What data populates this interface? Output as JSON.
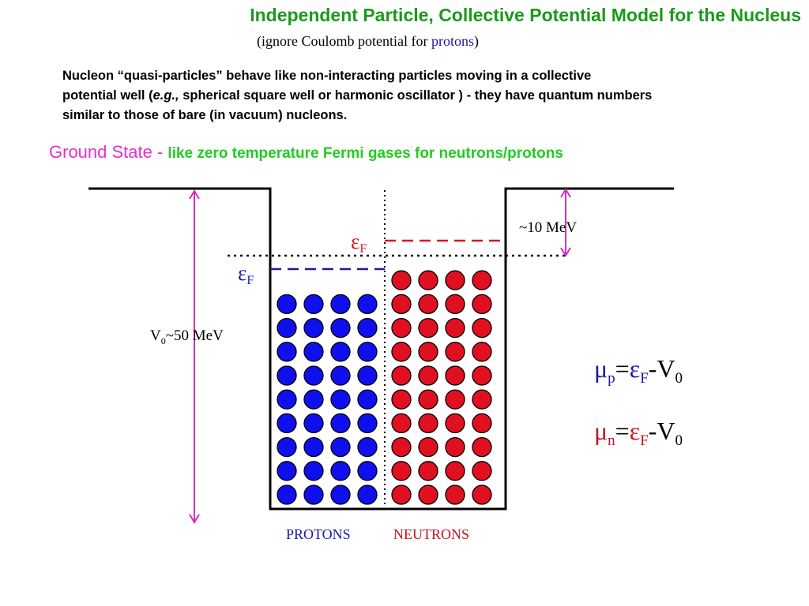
{
  "slide": {
    "title": "Independent Particle, Collective Potential Model for the Nucleus",
    "subtitle_prefix": "(ignore Coulomb potential for ",
    "subtitle_highlight": "protons",
    "subtitle_suffix": ")",
    "paragraph": {
      "line1": "Nucleon “quasi-particles” behave like non-interacting particles moving in a collective",
      "line2_a": "potential well (",
      "line2_italic": "e.g.,",
      "line2_b": " spherical square well or harmonic oscillator ) - they have quantum numbers",
      "line3": "similar to those of bare (in vacuum) nucleons."
    },
    "ground_state_lead": "Ground State - ",
    "ground_state_rest": "like zero temperature Fermi gases for neutrons/protons"
  },
  "diagram": {
    "fermi_symbol": "ε",
    "fermi_subscript": "F",
    "depth_symbol": "V",
    "depth_subscript": "0",
    "depth_value": "~50 MeV",
    "separation_label": "~10 MeV",
    "mu_symbol": "μ",
    "mu_p_subscript": "p",
    "mu_n_subscript": "n",
    "equation_rest": "-V",
    "equals": "=",
    "protons_label": "PROTONS",
    "neutrons_label": "NEUTRONS",
    "proton_grid": {
      "rows": 9,
      "cols": 4
    },
    "neutron_grid": {
      "rows": 10,
      "cols": 4
    },
    "colors": {
      "proton": "#1010ee",
      "neutron": "#e01020",
      "magenta": "#d030c0",
      "proton_text": "#1a1aa6",
      "neutron_text": "#cc1020"
    }
  }
}
